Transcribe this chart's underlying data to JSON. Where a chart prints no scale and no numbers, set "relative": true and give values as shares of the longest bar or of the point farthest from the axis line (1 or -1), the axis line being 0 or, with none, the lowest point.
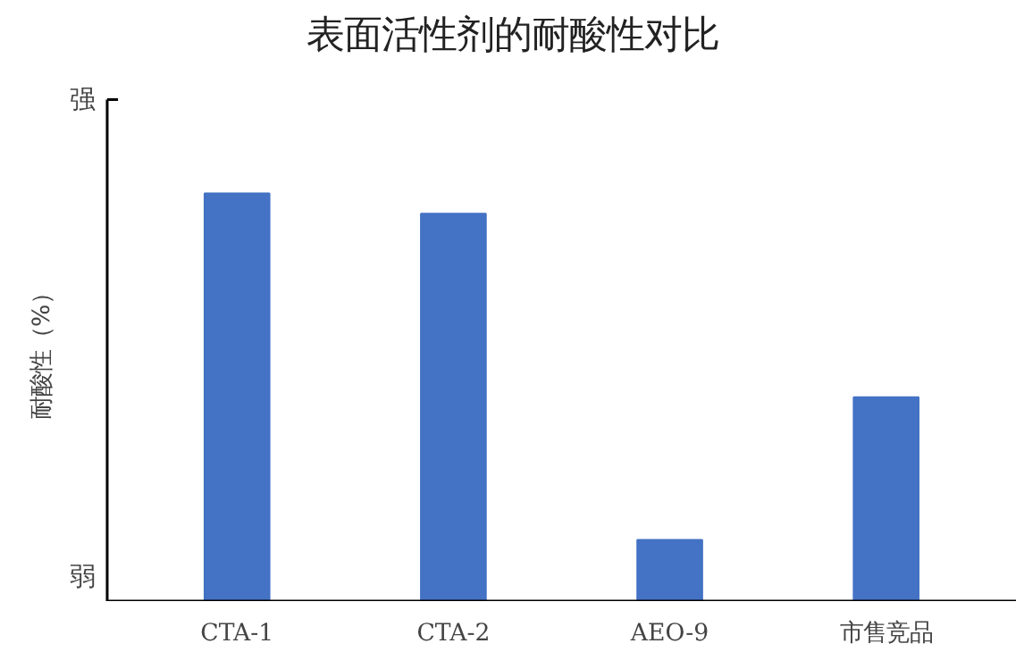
{
  "chart_data": {
    "type": "bar",
    "title": "表面活性剂的耐酸性对比",
    "ylabel": "耐酸性（%）",
    "categories": [
      "CTA-1",
      "CTA-2",
      "AEO-9",
      "市售竞品"
    ],
    "values": [
      1,
      0.95,
      0.15,
      0.5
    ],
    "color": "#4472c4",
    "relative": true,
    "annotations": [
      "强",
      "弱"
    ]
  }
}
